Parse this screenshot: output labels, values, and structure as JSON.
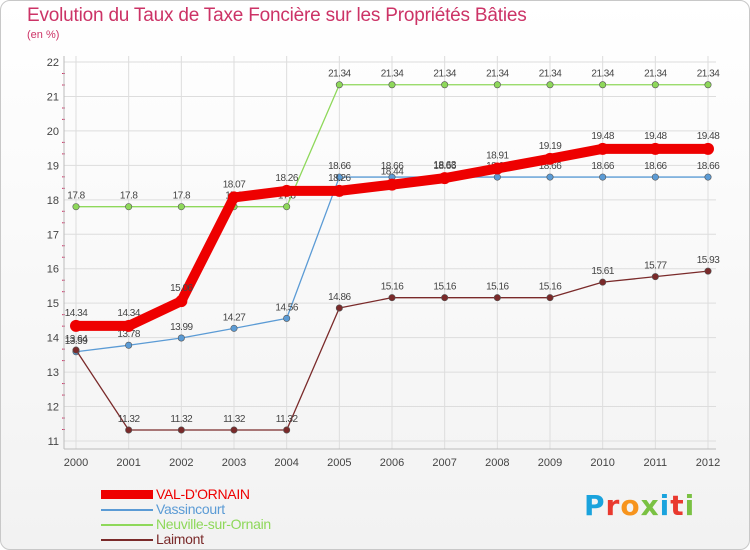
{
  "title": "Evolution du Taux de Taxe Foncière sur les Propriétés Bâties",
  "subtitle": "(en %)",
  "logo": {
    "letters": [
      "P",
      "r",
      "o",
      "x",
      "i",
      "t",
      "i"
    ],
    "colors": [
      "#1aa3dd",
      "#e9392f",
      "#f7941d",
      "#7ac143",
      "#1aa3dd",
      "#e9392f",
      "#7ac143"
    ]
  },
  "chart_data": {
    "type": "line",
    "title": "Evolution du Taux de Taxe Foncière sur les Propriétés Bâties",
    "ylabel": "(en %)",
    "xlabel": "",
    "x": [
      "2000",
      "2001",
      "2002",
      "2003",
      "2004",
      "2005",
      "2006",
      "2007",
      "2008",
      "2009",
      "2010",
      "2011",
      "2012"
    ],
    "ylim": [
      11,
      22
    ],
    "yticks": [
      "11",
      "12",
      "13",
      "14",
      "15",
      "16",
      "17",
      "18",
      "19",
      "20",
      "21",
      "22"
    ],
    "grid": true,
    "legend": "bottom-left",
    "series": [
      {
        "name": "VAL-D'ORNAIN",
        "color": "#ee0000",
        "emphasis": true,
        "values": [
          14.34,
          14.34,
          15.06,
          18.07,
          18.26,
          18.26,
          18.44,
          18.63,
          18.91,
          19.19,
          19.48,
          19.48,
          19.48
        ],
        "labels": [
          "14.34",
          "14.34",
          "15.06",
          "18.07",
          "18.26",
          "18.26",
          "18.44",
          "18.63",
          "18.91",
          "19.19",
          "19.48",
          "19.48",
          "19.48"
        ]
      },
      {
        "name": "Vassincourt",
        "color": "#5b9bd5",
        "emphasis": false,
        "values": [
          13.59,
          13.78,
          13.99,
          14.27,
          14.56,
          18.66,
          18.66,
          18.66,
          18.66,
          18.66,
          18.66,
          18.66,
          18.66
        ],
        "labels": [
          "13.59",
          "13.78",
          "13.99",
          "14.27",
          "14.56",
          "18.66",
          "18.66",
          "18.66",
          "18.66",
          "18.66",
          "18.66",
          "18.66",
          "18.66"
        ]
      },
      {
        "name": "Neuville-sur-Ornain",
        "color": "#8ed85a",
        "emphasis": false,
        "values": [
          17.8,
          17.8,
          17.8,
          17.8,
          17.8,
          21.34,
          21.34,
          21.34,
          21.34,
          21.34,
          21.34,
          21.34,
          21.34
        ],
        "labels": [
          "17.8",
          "17.8",
          "17.8",
          "17.8",
          "17.8",
          "21.34",
          "21.34",
          "21.34",
          "21.34",
          "21.34",
          "21.34",
          "21.34",
          "21.34"
        ]
      },
      {
        "name": "Laimont",
        "color": "#7a2a2a",
        "emphasis": false,
        "values": [
          13.64,
          11.32,
          11.32,
          11.32,
          11.32,
          14.86,
          15.16,
          15.16,
          15.16,
          15.16,
          15.61,
          15.77,
          15.93
        ],
        "labels": [
          "13.64",
          "11.32",
          "11.32",
          "11.32",
          "11.32",
          "14.86",
          "15.16",
          "15.16",
          "15.16",
          "15.16",
          "15.61",
          "15.77",
          "15.93"
        ]
      }
    ]
  }
}
